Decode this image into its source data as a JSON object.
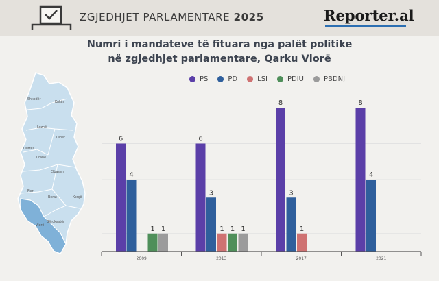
{
  "header": {
    "title_main": "ZGJEDHJET PARLAMENTARE",
    "title_year": "2025",
    "brand": "Reporter.al"
  },
  "map": {
    "regions": [
      "Shkodër",
      "Kukës",
      "Lezhë",
      "Dibër",
      "Durrës",
      "Tiranë",
      "Elbasan",
      "Fier",
      "Berat",
      "Korçë",
      "Vlorë",
      "Gjirokastër"
    ]
  },
  "colors": {
    "PS": "#5b3fa8",
    "PD": "#2f5f9c",
    "LSI": "#cf7272",
    "PDIU": "#4f8f5a",
    "PBDNJ": "#9b9b9b"
  },
  "chart_data": {
    "type": "bar",
    "title": "Numri i mandateve të fituara nga palët politike në zgjedhjet parlamentare, Qarku Vlorë",
    "title_lines": [
      "Numri i mandateve të fituara nga palët politike",
      "në zgjedhjet parlamentare, Qarku Vlorë"
    ],
    "categories": [
      "2009",
      "2013",
      "2017",
      "2021"
    ],
    "series": [
      {
        "name": "PS",
        "values": [
          6,
          6,
          8,
          8
        ]
      },
      {
        "name": "PD",
        "values": [
          4,
          3,
          3,
          4
        ]
      },
      {
        "name": "LSI",
        "values": [
          0,
          1,
          1,
          0
        ]
      },
      {
        "name": "PDIU",
        "values": [
          1,
          1,
          0,
          0
        ]
      },
      {
        "name": "PBDNJ",
        "values": [
          1,
          1,
          0,
          0
        ]
      }
    ],
    "ylim": [
      0,
      8
    ],
    "legend": "top",
    "grid": true
  }
}
